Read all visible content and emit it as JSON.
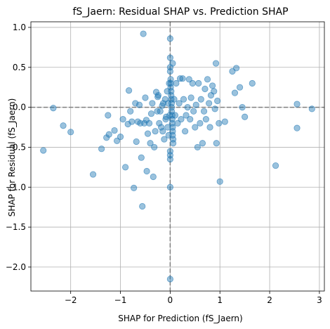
{
  "chart_data": {
    "type": "scatter",
    "title": "fS_Jaern: Residual SHAP vs. Prediction SHAP",
    "xlabel": "SHAP for Prediction (fS_Jaern)",
    "ylabel": "SHAP for Residual (fS_Jaern)",
    "xlim": [
      -2.8,
      3.1
    ],
    "ylim": [
      -2.3,
      1.07
    ],
    "xticks": [
      -2,
      -1,
      0,
      1,
      2,
      3
    ],
    "xtick_labels": [
      "−2",
      "−1",
      "0",
      "1",
      "2",
      "3"
    ],
    "yticks": [
      -2.0,
      -1.5,
      -1.0,
      -0.5,
      0.0,
      0.5,
      1.0
    ],
    "ytick_labels": [
      "−2.0",
      "−1.5",
      "−1.0",
      "−0.5",
      "0.0",
      "0.5",
      "1.0"
    ],
    "grid": true,
    "reference_lines": [
      {
        "axis": "x",
        "value": 0
      },
      {
        "axis": "y",
        "value": 0
      }
    ],
    "marker_color": "#1f77b4",
    "marker_alpha": 0.45,
    "points": [
      [
        -2.55,
        -0.54
      ],
      [
        -2.35,
        -0.01
      ],
      [
        -2.15,
        -0.23
      ],
      [
        -2.0,
        -0.31
      ],
      [
        -1.55,
        -0.84
      ],
      [
        -1.38,
        -0.52
      ],
      [
        -1.28,
        -0.38
      ],
      [
        -1.25,
        -0.1
      ],
      [
        -1.23,
        -0.34
      ],
      [
        -1.12,
        -0.29
      ],
      [
        -1.07,
        -0.42
      ],
      [
        -1.0,
        -0.37
      ],
      [
        -0.95,
        -0.15
      ],
      [
        -0.9,
        -0.75
      ],
      [
        -0.85,
        -0.21
      ],
      [
        -0.83,
        0.21
      ],
      [
        -0.8,
        -0.05
      ],
      [
        -0.77,
        -0.18
      ],
      [
        -0.73,
        -1.01
      ],
      [
        -0.7,
        0.05
      ],
      [
        -0.68,
        -0.43
      ],
      [
        -0.65,
        -0.18
      ],
      [
        -0.62,
        0.03
      ],
      [
        -0.6,
        -0.2
      ],
      [
        -0.58,
        -0.63
      ],
      [
        -0.56,
        -1.24
      ],
      [
        -0.54,
        0.92
      ],
      [
        -0.52,
        -0.2
      ],
      [
        -0.5,
        0.12
      ],
      [
        -0.48,
        -0.16
      ],
      [
        -0.47,
        -0.8
      ],
      [
        -0.45,
        -0.33
      ],
      [
        -0.42,
        -0.2
      ],
      [
        -0.4,
        -0.45
      ],
      [
        -0.38,
        -0.08
      ],
      [
        -0.36,
        0.05
      ],
      [
        -0.34,
        -0.87
      ],
      [
        -0.32,
        -0.5
      ],
      [
        -0.3,
        -0.3
      ],
      [
        -0.28,
        0.19
      ],
      [
        -0.26,
        -0.05
      ],
      [
        -0.25,
        0.13
      ],
      [
        -0.24,
        0.15
      ],
      [
        -0.22,
        -0.2
      ],
      [
        -0.2,
        -0.05
      ],
      [
        -0.18,
        -0.25
      ],
      [
        -0.16,
        0.02
      ],
      [
        -0.15,
        -0.3
      ],
      [
        -0.14,
        0.05
      ],
      [
        -0.12,
        -0.4
      ],
      [
        -0.1,
        0.1
      ],
      [
        -0.09,
        -0.15
      ],
      [
        -0.08,
        -0.12
      ],
      [
        -0.06,
        0.2
      ],
      [
        -0.05,
        -0.25
      ],
      [
        -0.04,
        0.05
      ],
      [
        -0.03,
        -0.35
      ],
      [
        -0.02,
        0.3
      ],
      [
        -0.01,
        -0.1
      ],
      [
        0.0,
        0.86
      ],
      [
        0.0,
        0.62
      ],
      [
        0.0,
        0.5
      ],
      [
        0.0,
        0.45
      ],
      [
        0.01,
        0.35
      ],
      [
        0.01,
        0.3
      ],
      [
        0.01,
        0.25
      ],
      [
        0.02,
        0.2
      ],
      [
        0.02,
        0.15
      ],
      [
        0.02,
        0.1
      ],
      [
        0.03,
        0.05
      ],
      [
        0.03,
        0.0
      ],
      [
        0.03,
        -0.05
      ],
      [
        0.04,
        -0.1
      ],
      [
        0.04,
        -0.15
      ],
      [
        0.04,
        -0.2
      ],
      [
        0.05,
        -0.25
      ],
      [
        0.05,
        -0.3
      ],
      [
        0.05,
        -0.35
      ],
      [
        0.06,
        -0.4
      ],
      [
        0.06,
        -0.45
      ],
      [
        0.0,
        -0.55
      ],
      [
        0.0,
        -0.6
      ],
      [
        0.0,
        -0.65
      ],
      [
        0.0,
        -1.0
      ],
      [
        0.0,
        -2.15
      ],
      [
        0.05,
        0.55
      ],
      [
        0.08,
        0.1
      ],
      [
        0.1,
        -0.1
      ],
      [
        0.12,
        0.3
      ],
      [
        0.15,
        -0.2
      ],
      [
        0.18,
        0.05
      ],
      [
        0.2,
        0.36
      ],
      [
        0.22,
        -0.15
      ],
      [
        0.25,
        0.36
      ],
      [
        0.27,
        0.1
      ],
      [
        0.3,
        -0.3
      ],
      [
        0.32,
        -0.1
      ],
      [
        0.35,
        0.0
      ],
      [
        0.38,
        0.35
      ],
      [
        0.4,
        -0.15
      ],
      [
        0.42,
        0.12
      ],
      [
        0.45,
        0.3
      ],
      [
        0.47,
        -0.05
      ],
      [
        0.5,
        -0.25
      ],
      [
        0.52,
        0.03
      ],
      [
        0.55,
        -0.5
      ],
      [
        0.57,
        0.3
      ],
      [
        0.6,
        -0.2
      ],
      [
        0.62,
        0.1
      ],
      [
        0.65,
        -0.45
      ],
      [
        0.68,
        -0.05
      ],
      [
        0.7,
        0.23
      ],
      [
        0.72,
        -0.15
      ],
      [
        0.75,
        0.35
      ],
      [
        0.78,
        0.05
      ],
      [
        0.8,
        -0.25
      ],
      [
        0.82,
        0.15
      ],
      [
        0.85,
        0.27
      ],
      [
        0.88,
        0.2
      ],
      [
        0.9,
        -0.02
      ],
      [
        0.92,
        0.55
      ],
      [
        0.93,
        -0.45
      ],
      [
        0.95,
        0.08
      ],
      [
        0.98,
        -0.2
      ],
      [
        1.0,
        -0.93
      ],
      [
        1.1,
        -0.18
      ],
      [
        1.25,
        0.45
      ],
      [
        1.3,
        0.18
      ],
      [
        1.33,
        0.49
      ],
      [
        1.4,
        0.25
      ],
      [
        1.45,
        0.0
      ],
      [
        1.5,
        -0.12
      ],
      [
        1.65,
        0.3
      ],
      [
        2.12,
        -0.73
      ],
      [
        2.55,
        0.04
      ],
      [
        2.55,
        -0.26
      ],
      [
        2.85,
        -0.02
      ]
    ]
  }
}
